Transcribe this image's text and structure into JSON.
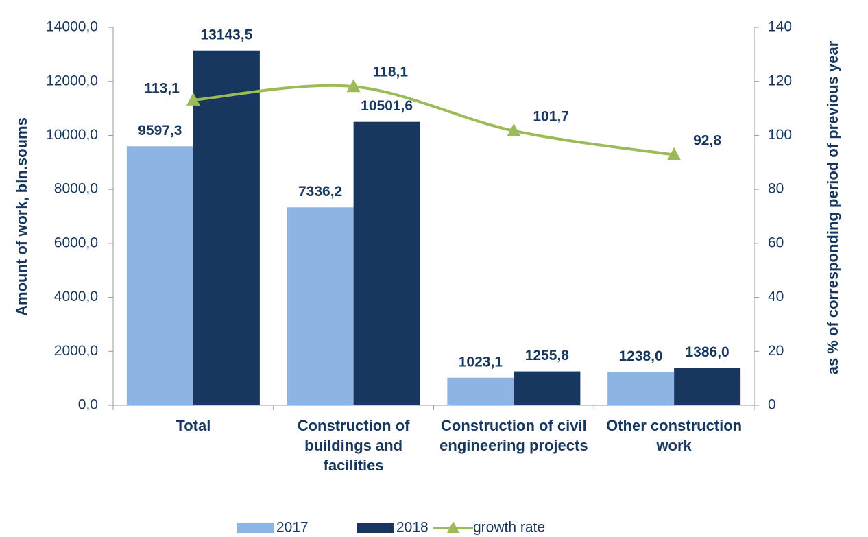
{
  "chart_data": {
    "type": "bar",
    "categories": [
      "Total",
      "Construction of buildings and facilities",
      "Construction of civil engineering projects",
      "Other construction work"
    ],
    "series": [
      {
        "name": "2017",
        "color": "#8eb4e3",
        "values": [
          9597.3,
          7336.2,
          1023.1,
          1238.0
        ],
        "value_labels": [
          "9597,3",
          "7336,2",
          "1023,1",
          "1238,0"
        ]
      },
      {
        "name": "2018",
        "color": "#17375e",
        "values": [
          13143.5,
          10501.6,
          1255.8,
          1386.0
        ],
        "value_labels": [
          "13143,5",
          "10501,6",
          "1255,8",
          "1386,0"
        ]
      },
      {
        "name": "growth rate",
        "type": "line",
        "axis": "y2",
        "color": "#9bbb59",
        "values": [
          113.1,
          118.1,
          101.7,
          92.8
        ],
        "value_labels": [
          "113,1",
          "118,1",
          "101,7",
          "92,8"
        ]
      }
    ],
    "y_label": "Amount of work, bln.soums",
    "y2_label": "as % of corresponding period of previous year",
    "ylim": [
      0,
      14000
    ],
    "yticks": [
      {
        "value": 0,
        "label": "0,0"
      },
      {
        "value": 2000,
        "label": "2000,0"
      },
      {
        "value": 4000,
        "label": "4000,0"
      },
      {
        "value": 6000,
        "label": "6000,0"
      },
      {
        "value": 8000,
        "label": "8000,0"
      },
      {
        "value": 10000,
        "label": "10000,0"
      },
      {
        "value": 12000,
        "label": "12000,0"
      },
      {
        "value": 14000,
        "label": "14000,0"
      }
    ],
    "y2lim": [
      0,
      140
    ],
    "y2ticks": [
      0,
      20,
      40,
      60,
      80,
      100,
      120,
      140
    ],
    "grid": false,
    "legend": "bottom"
  }
}
